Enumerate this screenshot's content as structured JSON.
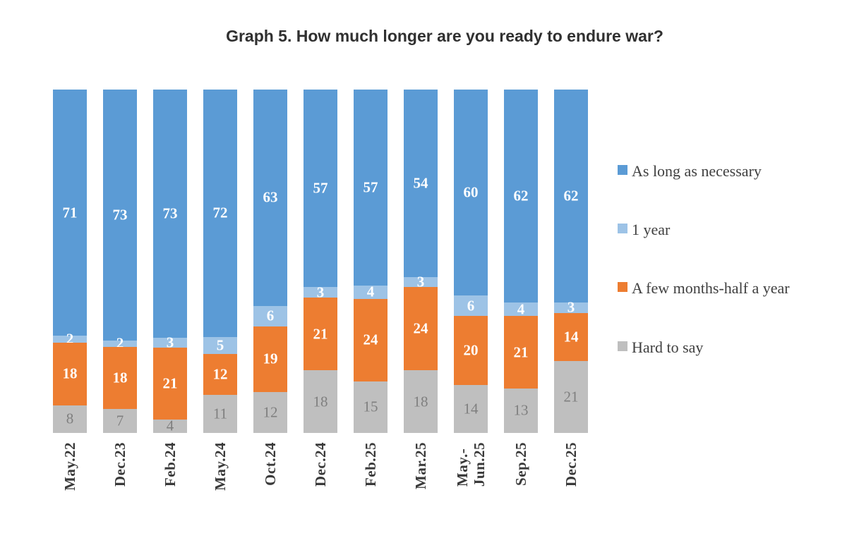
{
  "title": "Graph 5. How much longer are you ready to endure war?",
  "legend": [
    {
      "label": "As long as necessary",
      "color": "#5B9BD5"
    },
    {
      "label": "1 year",
      "color": "#9DC3E6"
    },
    {
      "label": "A few months-half a year",
      "color": "#ED7D31"
    },
    {
      "label": "Hard to say",
      "color": "#BFBFBF"
    }
  ],
  "chart_data": {
    "type": "bar",
    "stacked": true,
    "percent_stacked": true,
    "title": "Graph 5. How much longer are you ready to endure war?",
    "grid": false,
    "legend_position": "right",
    "categories": [
      "May.22",
      "Dec.23",
      "Feb.24",
      "May.24",
      "Oct.24",
      "Dec.24",
      "Feb.25",
      "Mar.25",
      "May.-\nJun.25",
      "Sep.25",
      "Dec.25"
    ],
    "series": [
      {
        "name": "As long as necessary",
        "color": "#5B9BD5",
        "label_color": "#FFFFFF",
        "values": [
          71,
          73,
          73,
          72,
          63,
          57,
          57,
          54,
          60,
          62,
          62
        ]
      },
      {
        "name": "1 year",
        "color": "#9DC3E6",
        "label_color": "#FFFFFF",
        "values": [
          2,
          2,
          3,
          5,
          6,
          3,
          4,
          3,
          6,
          4,
          3
        ]
      },
      {
        "name": "A few months-half a year",
        "color": "#ED7D31",
        "label_color": "#FFFFFF",
        "values": [
          18,
          18,
          21,
          12,
          19,
          21,
          24,
          24,
          20,
          21,
          14
        ]
      },
      {
        "name": "Hard to say",
        "color": "#BFBFBF",
        "label_color": "#7F7F7F",
        "values": [
          8,
          7,
          4,
          11,
          12,
          18,
          15,
          18,
          14,
          13,
          21
        ]
      }
    ]
  }
}
